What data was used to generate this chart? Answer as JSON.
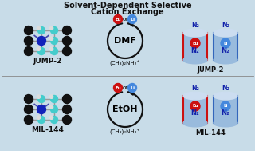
{
  "title_line1": "Solvent-Dependent Selective",
  "title_line2": "Cation Exchange",
  "bg_color": "#c8dce8",
  "top_solvent": "DMF",
  "bottom_solvent": "EtOH",
  "cation_formula_top": "(CH₃)₂NH₂⁺",
  "cation_formula_bot": "(CH₃)₂NH₂⁺",
  "label_jump2": "JUMP-2",
  "label_mil144": "MIL-144",
  "eu_color": "#cc1111",
  "li_color": "#4488dd",
  "eu_label": "Eu",
  "li_label": "Li",
  "n2_label": "N₂",
  "cylinder_red_border": "#cc1111",
  "cylinder_blue_border": "#3366bb",
  "cylinder_body": "#99bbdd",
  "cylinder_top_color": "#ccddf0",
  "divider_color": "#888888",
  "rod_color": "#999999",
  "atom_cyan": "#44cccc",
  "atom_black": "#111111",
  "atom_blue": "#1122bb",
  "atom_white": "#dddddd",
  "arrow_color": "#111111",
  "label_color": "#111111",
  "title_color": "#111111",
  "n2_color": "#1122aa"
}
